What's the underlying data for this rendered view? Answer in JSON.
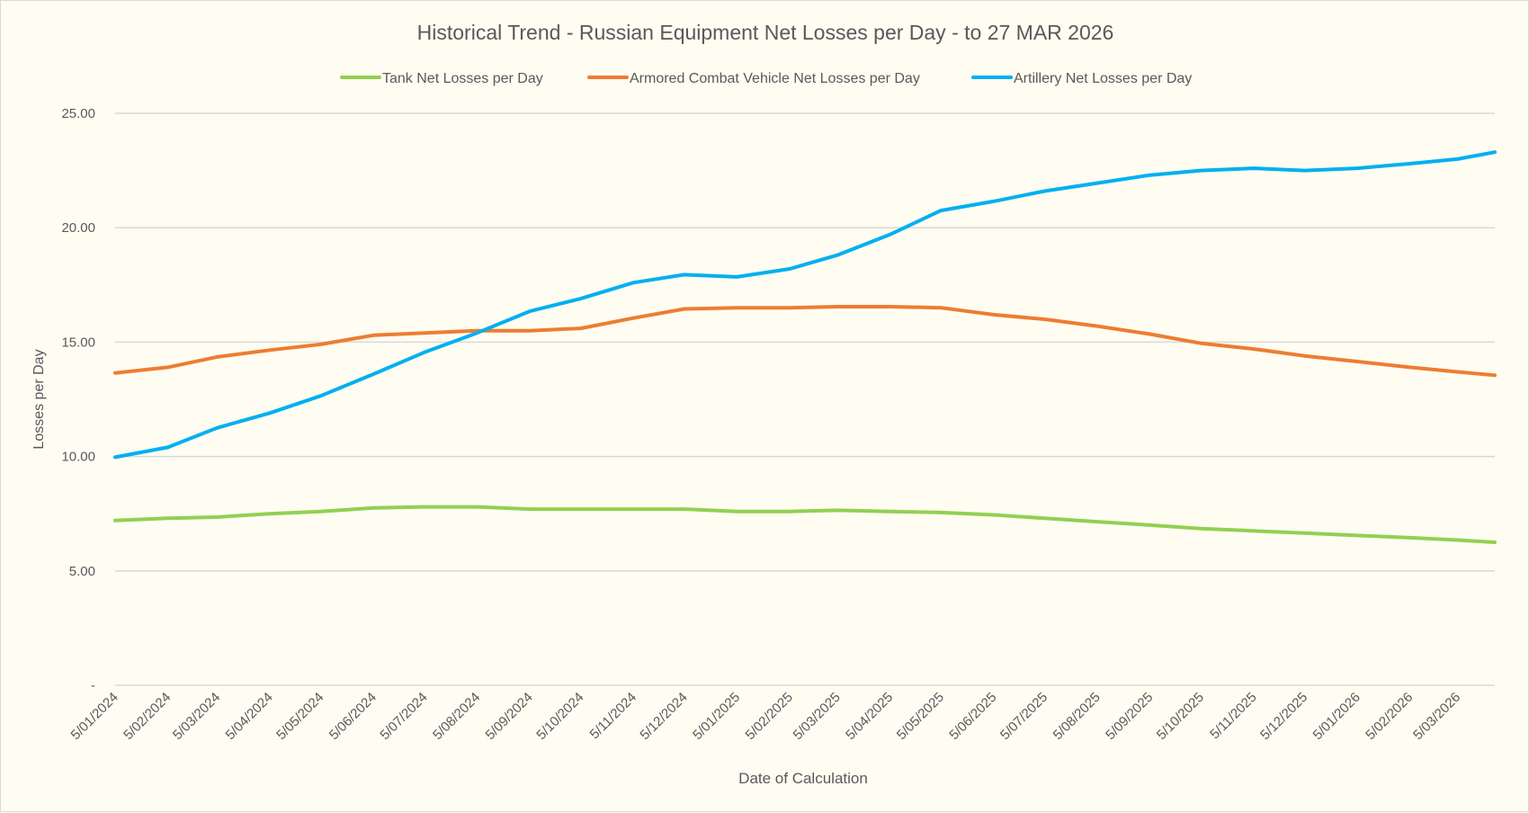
{
  "chart_data": {
    "type": "line",
    "title": "Historical Trend - Russian Equipment Net Losses per Day - to 27 MAR 2026",
    "xlabel": "Date of Calculation",
    "ylabel": "Losses per Day",
    "ylim": [
      0,
      25
    ],
    "yticks": [
      0,
      5,
      10,
      15,
      20,
      25
    ],
    "ytick_labels": [
      "-",
      "5.00",
      "10.00",
      "15.00",
      "20.00",
      "25.00"
    ],
    "xlim": [
      "2024-01-05",
      "2026-03-27"
    ],
    "xtick_dates": [
      "2024-01-05",
      "2024-02-05",
      "2024-03-05",
      "2024-04-05",
      "2024-05-05",
      "2024-06-05",
      "2024-07-05",
      "2024-08-05",
      "2024-09-05",
      "2024-10-05",
      "2024-11-05",
      "2024-12-05",
      "2025-01-05",
      "2025-02-05",
      "2025-03-05",
      "2025-04-05",
      "2025-05-05",
      "2025-06-05",
      "2025-07-05",
      "2025-08-05",
      "2025-09-05",
      "2025-10-05",
      "2025-11-05",
      "2025-12-05",
      "2026-01-05",
      "2026-02-05",
      "2026-03-05"
    ],
    "xtick_labels": [
      "5/01/2024",
      "5/02/2024",
      "5/03/2024",
      "5/04/2024",
      "5/05/2024",
      "5/06/2024",
      "5/07/2024",
      "5/08/2024",
      "5/09/2024",
      "5/10/2024",
      "5/11/2024",
      "5/12/2024",
      "5/01/2025",
      "5/02/2025",
      "5/03/2025",
      "5/04/2025",
      "5/05/2025",
      "5/06/2025",
      "5/07/2025",
      "5/08/2025",
      "5/09/2025",
      "5/10/2025",
      "5/11/2025",
      "5/12/2025",
      "5/01/2026",
      "5/02/2026",
      "5/03/2026"
    ],
    "grid": true,
    "legend_position": "top",
    "x": [
      "2024-01-05",
      "2024-02-05",
      "2024-03-05",
      "2024-04-05",
      "2024-05-05",
      "2024-06-05",
      "2024-07-05",
      "2024-08-05",
      "2024-09-05",
      "2024-10-05",
      "2024-11-05",
      "2024-12-05",
      "2025-01-05",
      "2025-02-05",
      "2025-03-05",
      "2025-04-05",
      "2025-05-05",
      "2025-06-05",
      "2025-07-05",
      "2025-08-05",
      "2025-09-05",
      "2025-10-05",
      "2025-11-05",
      "2025-12-05",
      "2026-01-05",
      "2026-02-05",
      "2026-03-05",
      "2026-03-27"
    ],
    "series": [
      {
        "name": "Tank Net Losses per Day",
        "color": "#92d050",
        "values": [
          7.2,
          7.3,
          7.35,
          7.5,
          7.6,
          7.75,
          7.8,
          7.8,
          7.7,
          7.7,
          7.7,
          7.7,
          7.6,
          7.6,
          7.65,
          7.6,
          7.55,
          7.45,
          7.3,
          7.15,
          7.0,
          6.85,
          6.75,
          6.65,
          6.55,
          6.45,
          6.35,
          6.25
        ]
      },
      {
        "name": "Armored Combat Vehicle Net Losses per Day",
        "color": "#ed7d31",
        "values": [
          13.65,
          13.9,
          14.35,
          14.65,
          14.9,
          15.3,
          15.4,
          15.5,
          15.5,
          15.6,
          16.05,
          16.45,
          16.5,
          16.5,
          16.55,
          16.55,
          16.5,
          16.2,
          16.0,
          15.7,
          15.35,
          14.95,
          14.7,
          14.4,
          14.15,
          13.9,
          13.7,
          13.55
        ]
      },
      {
        "name": "Artillery Net Losses per Day",
        "color": "#00b0f0",
        "values": [
          9.97,
          10.4,
          11.25,
          11.9,
          12.65,
          13.6,
          14.55,
          15.4,
          16.35,
          16.9,
          17.6,
          17.95,
          17.85,
          18.2,
          18.8,
          19.7,
          20.75,
          21.15,
          21.6,
          21.95,
          22.3,
          22.5,
          22.6,
          22.5,
          22.6,
          22.8,
          23.0,
          23.3
        ]
      }
    ]
  },
  "colors": {
    "background": "#fffcf2",
    "gridline": "#d9d9d9",
    "text": "#595959"
  }
}
